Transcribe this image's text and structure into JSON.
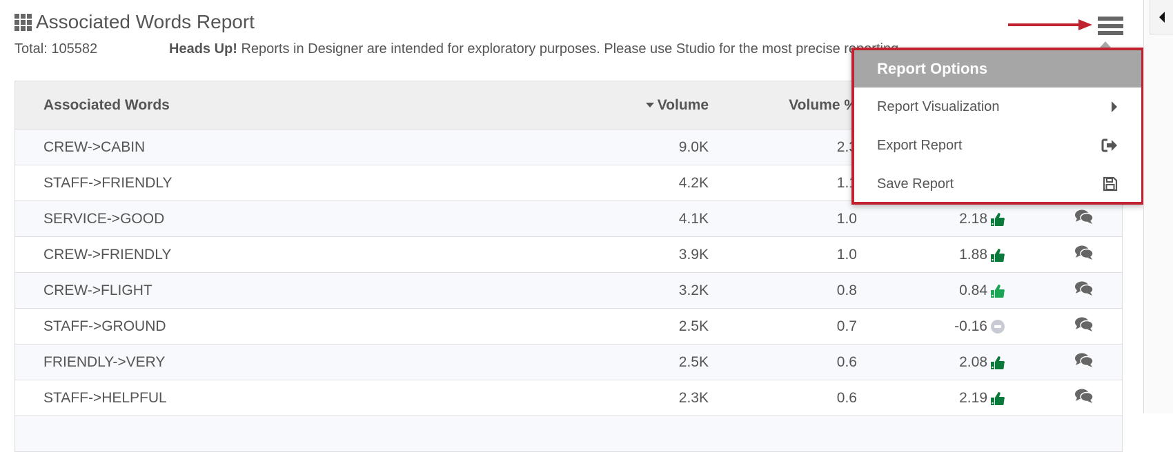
{
  "report": {
    "title": "Associated Words Report",
    "total_label": "Total: 105582",
    "notice_bold": "Heads Up!",
    "notice_text": " Reports in Designer are intended for exploratory purposes. Please use Studio for the most precise reporting."
  },
  "table": {
    "headers": [
      "Associated Words",
      "Volume",
      "Volume %",
      ""
    ],
    "sort_column": "Volume",
    "rows": [
      {
        "word": "CREW->CABIN",
        "volume": "9.0K",
        "volume_pct": "2.3",
        "sentiment": "",
        "sentiment_icon": "thumbs-up"
      },
      {
        "word": "STAFF->FRIENDLY",
        "volume": "4.2K",
        "volume_pct": "1.1",
        "sentiment": "",
        "sentiment_icon": "thumbs-up"
      },
      {
        "word": "SERVICE->GOOD",
        "volume": "4.1K",
        "volume_pct": "1.0",
        "sentiment": "2.18",
        "sentiment_icon": "thumbs-up"
      },
      {
        "word": "CREW->FRIENDLY",
        "volume": "3.9K",
        "volume_pct": "1.0",
        "sentiment": "1.88",
        "sentiment_icon": "thumbs-up"
      },
      {
        "word": "CREW->FLIGHT",
        "volume": "3.2K",
        "volume_pct": "0.8",
        "sentiment": "0.84",
        "sentiment_icon": "thumbs-up-light"
      },
      {
        "word": "STAFF->GROUND",
        "volume": "2.5K",
        "volume_pct": "0.7",
        "sentiment": "-0.16",
        "sentiment_icon": "neutral"
      },
      {
        "word": "FRIENDLY->VERY",
        "volume": "2.5K",
        "volume_pct": "0.6",
        "sentiment": "2.08",
        "sentiment_icon": "thumbs-up"
      },
      {
        "word": "STAFF->HELPFUL",
        "volume": "2.3K",
        "volume_pct": "0.6",
        "sentiment": "2.19",
        "sentiment_icon": "thumbs-up"
      },
      {
        "word": "",
        "volume": "",
        "volume_pct": "",
        "sentiment": "",
        "sentiment_icon": ""
      }
    ]
  },
  "menu": {
    "title": "Report Options",
    "items": [
      {
        "label": "Report Visualization",
        "icon": "chevron-right-icon"
      },
      {
        "label": "Export Report",
        "icon": "export-icon"
      },
      {
        "label": "Save Report",
        "icon": "save-icon"
      }
    ]
  },
  "colors": {
    "highlight_red": "#c0222f",
    "positive_green": "#0a7a3a",
    "positive_light_green": "#1aa655",
    "neutral_gray": "#c8cbd3",
    "menu_header": "#a6a6a6"
  }
}
